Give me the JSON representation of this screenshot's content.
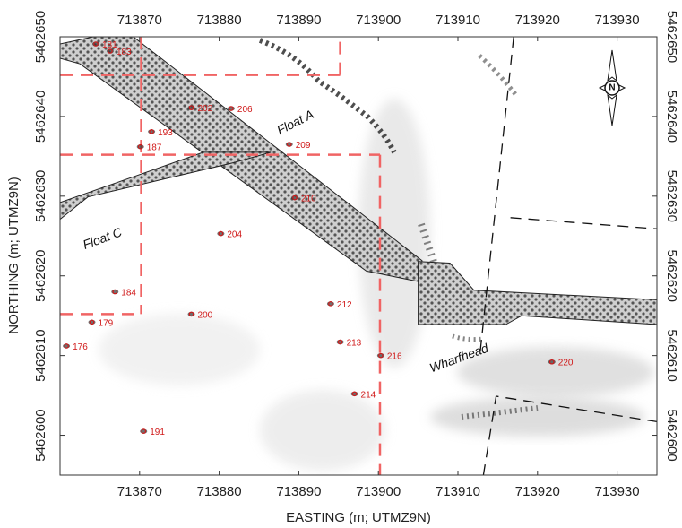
{
  "map": {
    "x_axis_title": "EASTING (m; UTMZ9N)",
    "y_axis_title": "NORTHING (m; UTMZ9N)",
    "x_range": [
      713860,
      713935
    ],
    "y_range": [
      5462595,
      5462650
    ],
    "x_ticks": [
      713870,
      713880,
      713890,
      713900,
      713910,
      713920,
      713930
    ],
    "y_ticks": [
      5462600,
      5462610,
      5462620,
      5462630,
      5462640,
      5462650
    ],
    "north_arrow_letter": "N",
    "colors": {
      "grid": "#f06464",
      "sites": "#d01818",
      "axis": "#333333"
    },
    "feature_labels": [
      {
        "text": "Float A",
        "x": 713889.8,
        "y": 5462638.8,
        "angle": -27
      },
      {
        "text": "Float C",
        "x": 713865.5,
        "y": 5462624.2,
        "angle": -20
      },
      {
        "text": "Wharfhead",
        "x": 713910.3,
        "y": 5462609.2,
        "angle": -20
      }
    ],
    "sites": [
      {
        "label": "181",
        "x": 713864.5,
        "y": 5462649.1
      },
      {
        "label": "183",
        "x": 713866.3,
        "y": 5462648.2
      },
      {
        "label": "187",
        "x": 713870.1,
        "y": 5462636.2
      },
      {
        "label": "193",
        "x": 713871.5,
        "y": 5462638.1
      },
      {
        "label": "202",
        "x": 713876.5,
        "y": 5462641.1
      },
      {
        "label": "206",
        "x": 713881.5,
        "y": 5462641.0
      },
      {
        "label": "209",
        "x": 713888.8,
        "y": 5462636.5
      },
      {
        "label": "210",
        "x": 713889.5,
        "y": 5462629.8
      },
      {
        "label": "204",
        "x": 713880.2,
        "y": 5462625.3
      },
      {
        "label": "184",
        "x": 713866.9,
        "y": 5462618.0
      },
      {
        "label": "179",
        "x": 713864.0,
        "y": 5462614.2
      },
      {
        "label": "176",
        "x": 713860.8,
        "y": 5462611.2
      },
      {
        "label": "200",
        "x": 713876.5,
        "y": 5462615.2
      },
      {
        "label": "212",
        "x": 713894.0,
        "y": 5462616.5
      },
      {
        "label": "213",
        "x": 713895.2,
        "y": 5462611.7
      },
      {
        "label": "216",
        "x": 713900.3,
        "y": 5462610.0
      },
      {
        "label": "214",
        "x": 713897.0,
        "y": 5462605.2
      },
      {
        "label": "191",
        "x": 713870.5,
        "y": 5462600.5
      },
      {
        "label": "220",
        "x": 713921.8,
        "y": 5462609.2
      }
    ],
    "grid_lines": [
      {
        "x1": 713860,
        "y1": 5462645.2,
        "x2": 713895.2,
        "y2": 5462645.2
      },
      {
        "x1": 713895.2,
        "y1": 5462645.2,
        "x2": 713895.2,
        "y2": 5462650
      },
      {
        "x1": 713870.2,
        "y1": 5462650,
        "x2": 713870.2,
        "y2": 5462615.2
      },
      {
        "x1": 713860,
        "y1": 5462615.2,
        "x2": 713870.2,
        "y2": 5462615.2
      },
      {
        "x1": 713860,
        "y1": 5462635.2,
        "x2": 713900.2,
        "y2": 5462635.2
      },
      {
        "x1": 713900.2,
        "y1": 5462635.2,
        "x2": 713900.2,
        "y2": 5462595
      }
    ],
    "boundary_lines": [
      {
        "points": [
          [
            713917.0,
            5462650
          ],
          [
            713912.8,
            5462610.5
          ]
        ]
      },
      {
        "points": [
          [
            713916.6,
            5462627.3
          ],
          [
            713935,
            5462625.9
          ]
        ]
      },
      {
        "points": [
          [
            713913.2,
            5462595.0
          ],
          [
            713914.8,
            5462604.9
          ],
          [
            713935,
            5462601.7
          ]
        ]
      }
    ],
    "structures": [
      {
        "name": "float-a",
        "polygon": [
          [
            713860,
            5462649.1
          ],
          [
            713864.2,
            5462650
          ],
          [
            713869.2,
            5462650
          ],
          [
            713905.5,
            5462621.9
          ],
          [
            713905.0,
            5462619.3
          ],
          [
            713898.5,
            5462620.6
          ],
          [
            713862.5,
            5462646.6
          ],
          [
            713860,
            5462647.3
          ]
        ]
      },
      {
        "name": "float-c",
        "polygon": [
          [
            713860,
            5462627.1
          ],
          [
            713860,
            5462629.2
          ],
          [
            713878.0,
            5462635.5
          ],
          [
            713886.5,
            5462635.5
          ],
          [
            713881.8,
            5462634.2
          ],
          [
            713863.5,
            5462629.9
          ]
        ]
      },
      {
        "name": "wharfhead",
        "polygon": [
          [
            713905.0,
            5462621.8
          ],
          [
            713909.0,
            5462621.6
          ],
          [
            713912.0,
            5462618.2
          ],
          [
            713935,
            5462617.0
          ],
          [
            713935,
            5462613.9
          ],
          [
            713918.0,
            5462615.0
          ],
          [
            713916.0,
            5462613.9
          ],
          [
            713905.0,
            5462613.9
          ]
        ]
      }
    ]
  }
}
